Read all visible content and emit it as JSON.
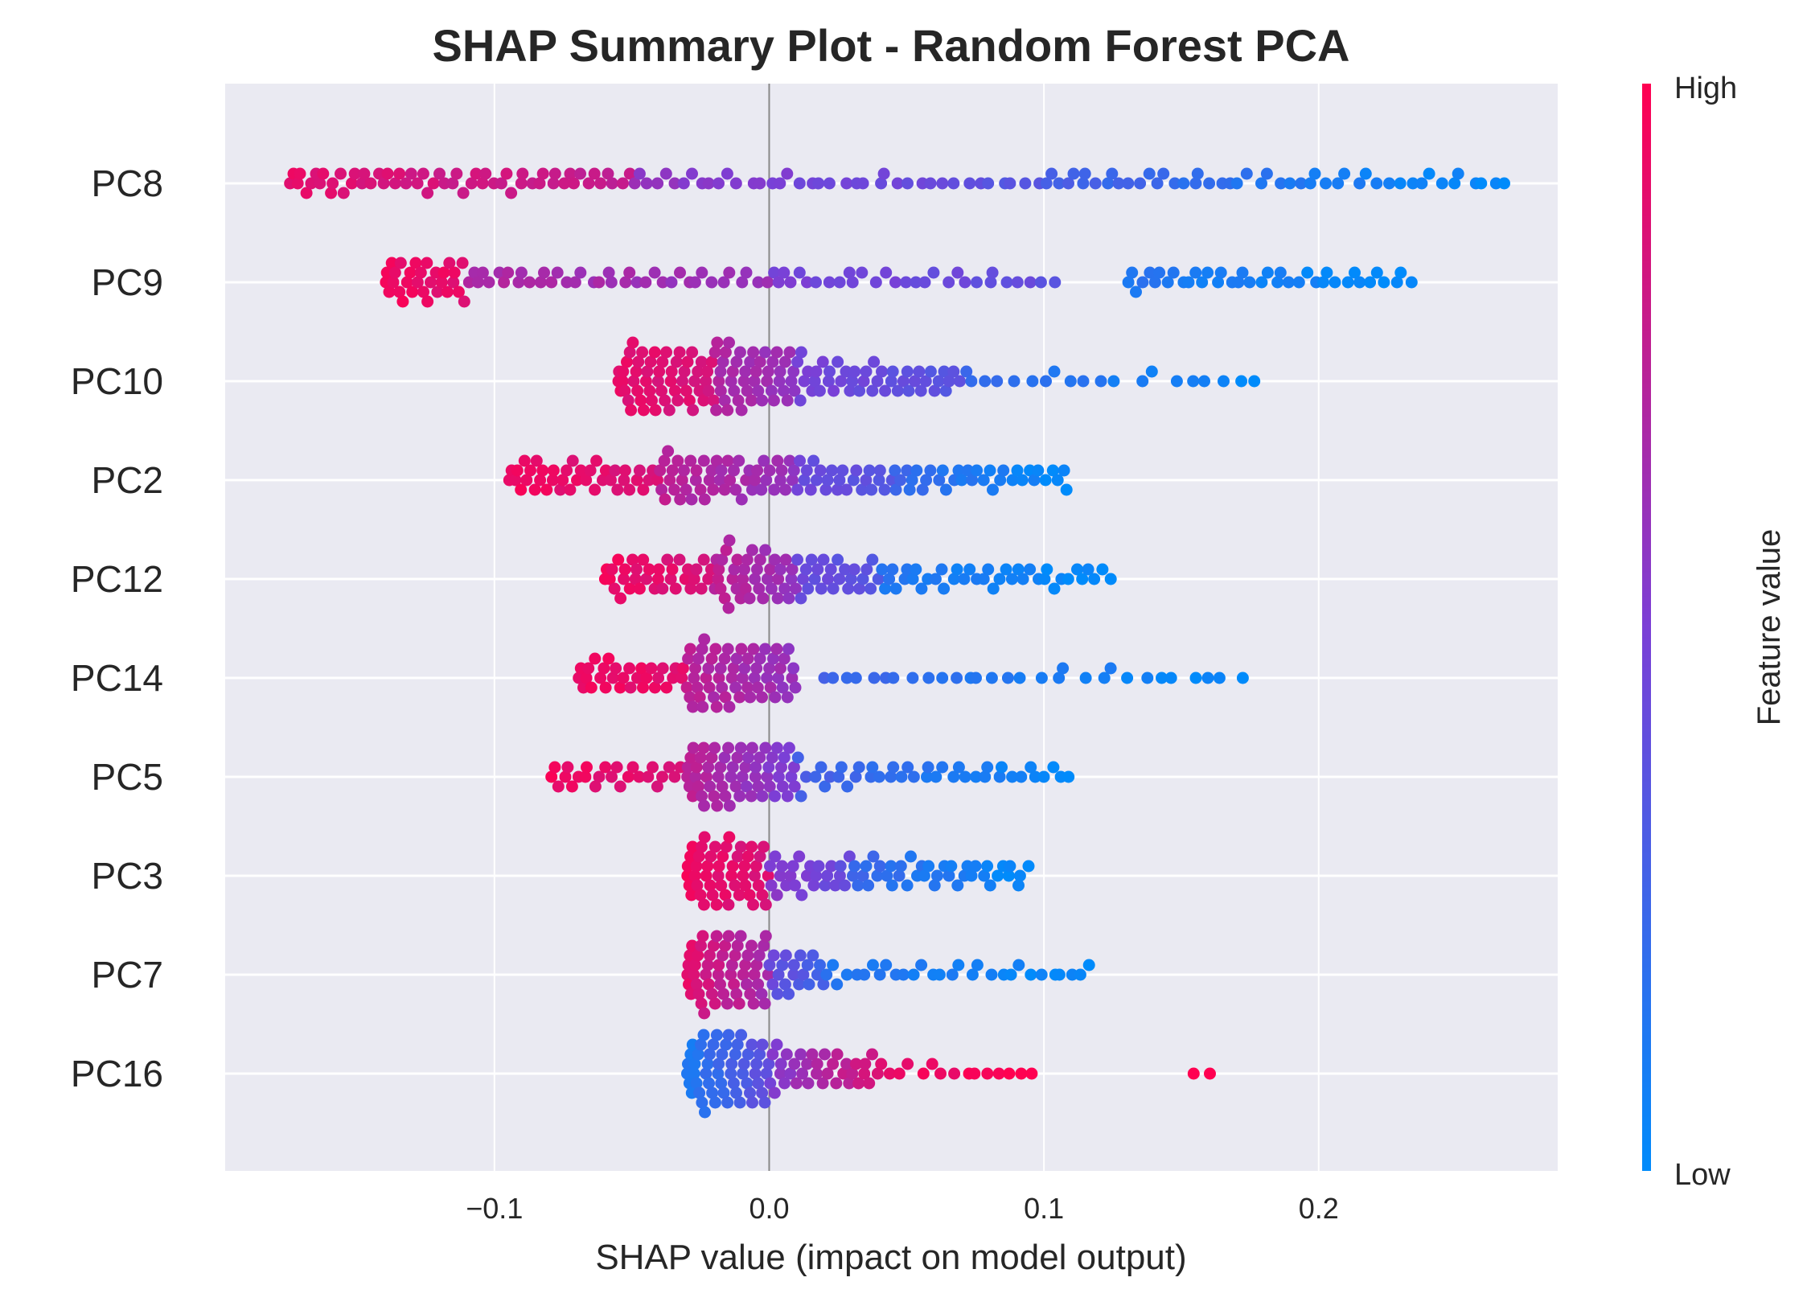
{
  "chart_data": {
    "type": "scatter",
    "title": "SHAP Summary Plot - Random Forest PCA",
    "xlabel": "SHAP value (impact on model output)",
    "xlim": [
      -0.198,
      0.287
    ],
    "xticks": [
      -0.1,
      0.0,
      0.1,
      0.2
    ],
    "xtick_labels": [
      "−0.1",
      "0.0",
      "0.1",
      "0.2"
    ],
    "grid": true,
    "colorbar": {
      "label": "Feature value",
      "high_label": "High",
      "low_label": "Low",
      "low_color": "#008bfb",
      "high_color": "#ff0051"
    },
    "features": [
      {
        "name": "PC8",
        "ranges": [
          {
            "from": -0.175,
            "to": -0.05,
            "vfrom": 0.9,
            "vto": 0.75,
            "n": 60
          },
          {
            "from": -0.05,
            "to": 0.1,
            "vfrom": 0.6,
            "vto": 0.35,
            "n": 40
          },
          {
            "from": 0.1,
            "to": 0.27,
            "vfrom": 0.3,
            "vto": 0.0,
            "n": 50
          }
        ]
      },
      {
        "name": "PC9",
        "ranges": [
          {
            "from": -0.14,
            "to": -0.11,
            "vfrom": 0.95,
            "vto": 0.9,
            "n": 30
          },
          {
            "from": -0.11,
            "to": 0.0,
            "vfrom": 0.7,
            "vto": 0.6,
            "n": 40
          },
          {
            "from": 0.0,
            "to": 0.105,
            "vfrom": 0.5,
            "vto": 0.4,
            "n": 30
          },
          {
            "from": 0.13,
            "to": 0.235,
            "vfrom": 0.15,
            "vto": 0.0,
            "n": 40
          }
        ]
      },
      {
        "name": "PC10",
        "ranges": [
          {
            "from": -0.055,
            "to": -0.02,
            "vfrom": 0.9,
            "vto": 0.85,
            "n": 55
          },
          {
            "from": -0.02,
            "to": 0.01,
            "vfrom": 0.7,
            "vto": 0.6,
            "n": 45
          },
          {
            "from": 0.01,
            "to": 0.07,
            "vfrom": 0.5,
            "vto": 0.35,
            "n": 45
          },
          {
            "from": 0.07,
            "to": 0.18,
            "vfrom": 0.25,
            "vto": 0.0,
            "n": 20
          }
        ]
      },
      {
        "name": "PC2",
        "ranges": [
          {
            "from": -0.095,
            "to": -0.04,
            "vfrom": 0.95,
            "vto": 0.85,
            "n": 40
          },
          {
            "from": -0.04,
            "to": 0.01,
            "vfrom": 0.75,
            "vto": 0.6,
            "n": 50
          },
          {
            "from": 0.01,
            "to": 0.045,
            "vfrom": 0.45,
            "vto": 0.35,
            "n": 25
          },
          {
            "from": 0.045,
            "to": 0.11,
            "vfrom": 0.25,
            "vto": 0.0,
            "n": 35
          }
        ]
      },
      {
        "name": "PC12",
        "ranges": [
          {
            "from": -0.06,
            "to": -0.02,
            "vfrom": 0.95,
            "vto": 0.85,
            "n": 35
          },
          {
            "from": -0.02,
            "to": 0.01,
            "vfrom": 0.75,
            "vto": 0.6,
            "n": 40
          },
          {
            "from": 0.01,
            "to": 0.04,
            "vfrom": 0.45,
            "vto": 0.35,
            "n": 25
          },
          {
            "from": 0.04,
            "to": 0.125,
            "vfrom": 0.15,
            "vto": 0.0,
            "n": 40
          }
        ]
      },
      {
        "name": "PC14",
        "ranges": [
          {
            "from": -0.07,
            "to": -0.03,
            "vfrom": 0.95,
            "vto": 0.9,
            "n": 30
          },
          {
            "from": -0.03,
            "to": 0.01,
            "vfrom": 0.75,
            "vto": 0.6,
            "n": 60
          },
          {
            "from": 0.02,
            "to": 0.175,
            "vfrom": 0.25,
            "vto": 0.0,
            "n": 30
          }
        ]
      },
      {
        "name": "PC5",
        "ranges": [
          {
            "from": -0.08,
            "to": -0.03,
            "vfrom": 0.95,
            "vto": 0.85,
            "n": 25
          },
          {
            "from": -0.03,
            "to": 0.01,
            "vfrom": 0.75,
            "vto": 0.5,
            "n": 60
          },
          {
            "from": 0.01,
            "to": 0.11,
            "vfrom": 0.3,
            "vto": 0.0,
            "n": 40
          }
        ]
      },
      {
        "name": "PC3",
        "ranges": [
          {
            "from": -0.03,
            "to": 0.0,
            "vfrom": 0.95,
            "vto": 0.85,
            "n": 50
          },
          {
            "from": 0.0,
            "to": 0.03,
            "vfrom": 0.55,
            "vto": 0.4,
            "n": 25
          },
          {
            "from": 0.03,
            "to": 0.095,
            "vfrom": 0.25,
            "vto": 0.0,
            "n": 40
          }
        ]
      },
      {
        "name": "PC7",
        "ranges": [
          {
            "from": -0.03,
            "to": 0.0,
            "vfrom": 0.9,
            "vto": 0.65,
            "n": 55
          },
          {
            "from": 0.0,
            "to": 0.02,
            "vfrom": 0.45,
            "vto": 0.25,
            "n": 20
          },
          {
            "from": 0.02,
            "to": 0.12,
            "vfrom": 0.15,
            "vto": 0.0,
            "n": 30
          }
        ]
      },
      {
        "name": "PC16",
        "ranges": [
          {
            "from": -0.03,
            "to": 0.0,
            "vfrom": 0.1,
            "vto": 0.4,
            "n": 55
          },
          {
            "from": 0.0,
            "to": 0.04,
            "vfrom": 0.5,
            "vto": 0.85,
            "n": 35
          },
          {
            "from": 0.04,
            "to": 0.1,
            "vfrom": 0.9,
            "vto": 1.0,
            "n": 15
          },
          {
            "from": 0.15,
            "to": 0.162,
            "vfrom": 1.0,
            "vto": 1.0,
            "n": 2
          }
        ]
      }
    ]
  }
}
